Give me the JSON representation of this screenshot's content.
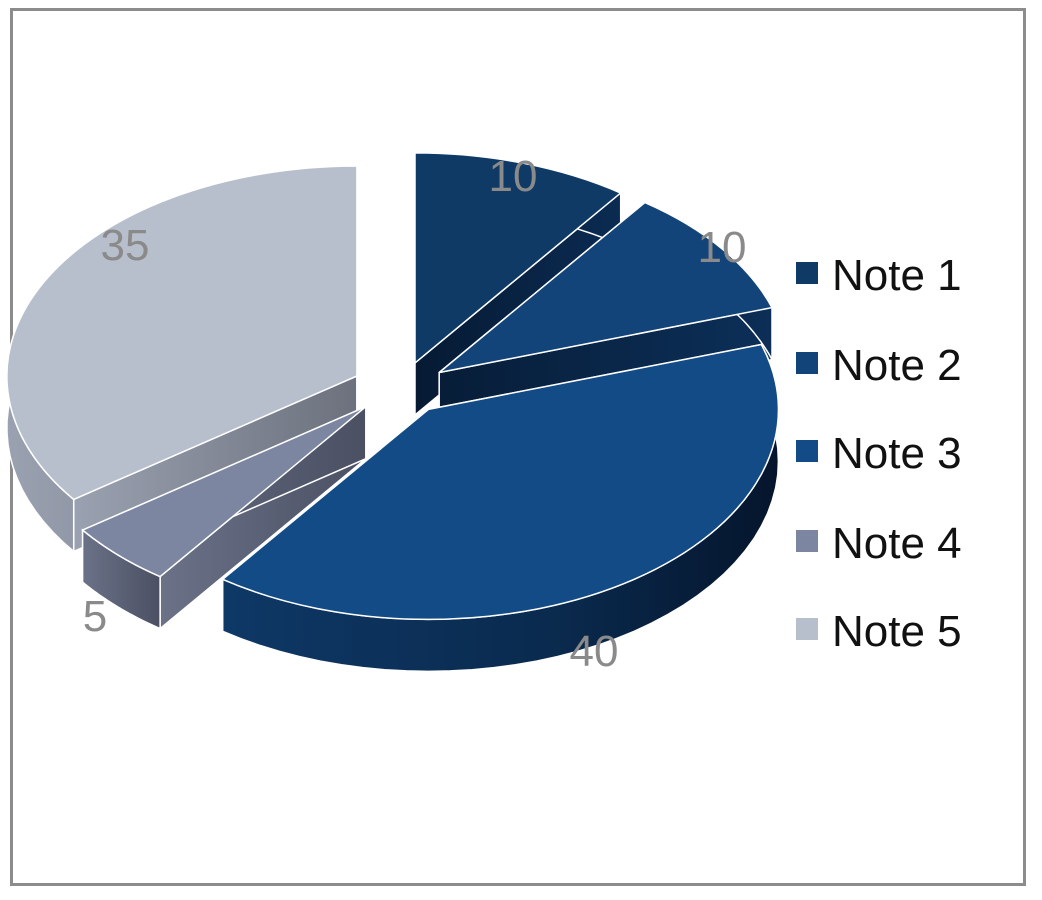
{
  "chart_data": {
    "type": "pie",
    "style": "3d-exploded",
    "title": "",
    "categories": [
      "Note 1",
      "Note 2",
      "Note 3",
      "Note 4",
      "Note 5"
    ],
    "values": [
      10,
      10,
      40,
      5,
      35
    ],
    "colors": [
      "#0f3a66",
      "#124479",
      "#134b86",
      "#7d86a1",
      "#b8bfcc"
    ],
    "data_labels": [
      "10",
      "10",
      "40",
      "5",
      "35"
    ],
    "legend": {
      "position": "right",
      "entries": [
        "Note 1",
        "Note 2",
        "Note 3",
        "Note 4",
        "Note 5"
      ]
    }
  }
}
